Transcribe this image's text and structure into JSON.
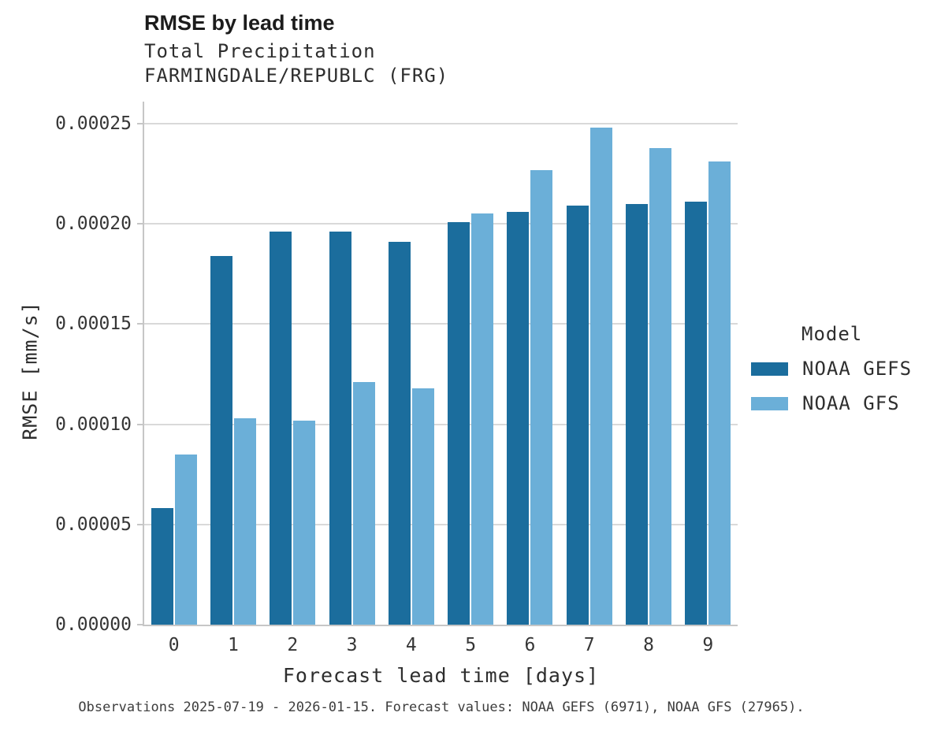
{
  "header": {
    "title": "RMSE by lead time",
    "subtitle_line1": "Total Precipitation",
    "subtitle_line2": "FARMINGDALE/REPUBLC (FRG)"
  },
  "chart_data": {
    "type": "bar",
    "categories": [
      "0",
      "1",
      "2",
      "3",
      "4",
      "5",
      "6",
      "7",
      "8",
      "9"
    ],
    "series": [
      {
        "name": "NOAA GEFS",
        "color": "#1b6d9d",
        "values": [
          5.8e-05,
          0.000184,
          0.000196,
          0.000196,
          0.000191,
          0.000201,
          0.000206,
          0.000209,
          0.00021,
          0.000211
        ]
      },
      {
        "name": "NOAA GFS",
        "color": "#6bafd8",
        "values": [
          8.5e-05,
          0.000103,
          0.000102,
          0.000121,
          0.000118,
          0.000205,
          0.000227,
          0.000248,
          0.000238,
          0.000231
        ]
      }
    ],
    "title": "RMSE by lead time",
    "xlabel": "Forecast lead time [days]",
    "ylabel": "RMSE [mm/s]",
    "ylim": [
      0,
      0.00026
    ],
    "yticks": [
      {
        "value": 0.0,
        "label": "0.00000"
      },
      {
        "value": 5e-05,
        "label": "0.00005"
      },
      {
        "value": 0.0001,
        "label": "0.00010"
      },
      {
        "value": 0.00015,
        "label": "0.00015"
      },
      {
        "value": 0.0002,
        "label": "0.00020"
      },
      {
        "value": 0.00025,
        "label": "0.00025"
      }
    ],
    "grid": "horizontal",
    "legend_position": "right",
    "legend_title": "Model",
    "colors": {
      "gridline": "#d9d9d9",
      "spine": "#c6c6c6",
      "background": "#ffffff"
    }
  },
  "caption": "Observations 2025-07-19 - 2026-01-15. Forecast values: NOAA GEFS (6971), NOAA GFS (27965)."
}
